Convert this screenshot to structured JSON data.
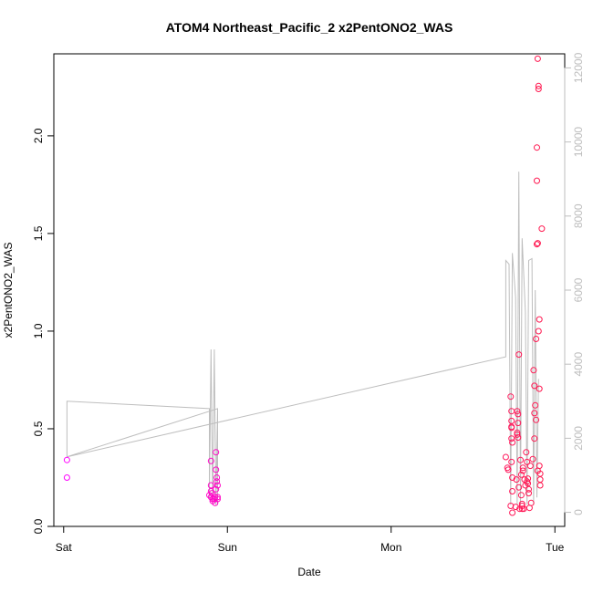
{
  "chart_data": {
    "type": "scatter",
    "title": "ATOM4 Northeast_Pacific_2 x2PentONO2_WAS",
    "xlabel": "Date",
    "ylabel": "x2PentONO2_WAS",
    "x_ticks": [
      {
        "label": "Sat",
        "value": 0
      },
      {
        "label": "Sun",
        "value": 1
      },
      {
        "label": "Mon",
        "value": 2
      },
      {
        "label": "Tue",
        "value": 3
      }
    ],
    "xlim": [
      -0.06,
      3.06
    ],
    "y_ticks": [
      0.0,
      0.5,
      1.0,
      1.5,
      2.0
    ],
    "y_tick_labels": [
      "0.0",
      "0.5",
      "1.0",
      "1.5",
      "2.0"
    ],
    "ylim": [
      0.0,
      2.42
    ],
    "y2_ticks": [
      0,
      2000,
      4000,
      6000,
      8000,
      10000,
      12000
    ],
    "y2lim": [
      -380,
      12380
    ],
    "grid": false,
    "colors": {
      "points_start": "#ff00ff",
      "points_end": "#ff1a4a",
      "altitude_line": "#bebebe"
    },
    "series": [
      {
        "points": [
          [
            0.02,
            0.34
          ],
          [
            0.02,
            0.25
          ],
          [
            0.9,
            0.335
          ],
          [
            0.9,
            0.21
          ],
          [
            0.89,
            0.16
          ],
          [
            0.9,
            0.15
          ],
          [
            0.91,
            0.14
          ],
          [
            0.905,
            0.17
          ],
          [
            0.91,
            0.13
          ],
          [
            0.9,
            0.18
          ],
          [
            0.92,
            0.14
          ],
          [
            0.925,
            0.15
          ],
          [
            0.93,
            0.38
          ],
          [
            0.93,
            0.29
          ],
          [
            0.935,
            0.25
          ],
          [
            0.935,
            0.23
          ],
          [
            0.94,
            0.21
          ],
          [
            0.93,
            0.19
          ],
          [
            0.925,
            0.12
          ],
          [
            0.94,
            0.15
          ],
          [
            0.94,
            0.14
          ],
          [
            2.7,
            0.355
          ],
          [
            2.71,
            0.3
          ],
          [
            2.715,
            0.29
          ],
          [
            2.73,
            0.665
          ],
          [
            2.735,
            0.59
          ],
          [
            2.735,
            0.54
          ],
          [
            2.735,
            0.51
          ],
          [
            2.735,
            0.505
          ],
          [
            2.735,
            0.45
          ],
          [
            2.74,
            0.43
          ],
          [
            2.735,
            0.33
          ],
          [
            2.74,
            0.25
          ],
          [
            2.74,
            0.18
          ],
          [
            2.73,
            0.105
          ],
          [
            2.74,
            0.07
          ],
          [
            2.76,
            0.1
          ],
          [
            2.765,
            0.24
          ],
          [
            2.77,
            0.59
          ],
          [
            2.775,
            0.575
          ],
          [
            2.775,
            0.53
          ],
          [
            2.77,
            0.48
          ],
          [
            2.77,
            0.47
          ],
          [
            2.775,
            0.455
          ],
          [
            2.78,
            0.88
          ],
          [
            2.78,
            0.2
          ],
          [
            2.785,
            0.09
          ],
          [
            2.79,
            0.34
          ],
          [
            2.795,
            0.265
          ],
          [
            2.795,
            0.16
          ],
          [
            2.8,
            0.115
          ],
          [
            2.8,
            0.09
          ],
          [
            2.8,
            0.105
          ],
          [
            2.805,
            0.3
          ],
          [
            2.805,
            0.285
          ],
          [
            2.81,
            0.09
          ],
          [
            2.815,
            0.24
          ],
          [
            2.82,
            0.21
          ],
          [
            2.825,
            0.38
          ],
          [
            2.83,
            0.33
          ],
          [
            2.83,
            0.23
          ],
          [
            2.835,
            0.245
          ],
          [
            2.835,
            0.22
          ],
          [
            2.84,
            0.19
          ],
          [
            2.84,
            0.17
          ],
          [
            2.845,
            0.095
          ],
          [
            2.85,
            0.31
          ],
          [
            2.855,
            0.12
          ],
          [
            2.865,
            0.345
          ],
          [
            2.87,
            0.8
          ],
          [
            2.875,
            0.72
          ],
          [
            2.875,
            0.58
          ],
          [
            2.875,
            0.45
          ],
          [
            2.88,
            0.62
          ],
          [
            2.885,
            0.96
          ],
          [
            2.885,
            0.545
          ],
          [
            2.89,
            1.94
          ],
          [
            2.89,
            1.445
          ],
          [
            2.89,
            1.77
          ],
          [
            2.895,
            1.45
          ],
          [
            2.895,
            0.285
          ],
          [
            2.9,
            1.0
          ],
          [
            2.905,
            1.06
          ],
          [
            2.905,
            0.705
          ],
          [
            2.905,
            0.31
          ],
          [
            2.91,
            0.27
          ],
          [
            2.91,
            0.24
          ],
          [
            2.91,
            0.21
          ],
          [
            2.92,
            1.525
          ],
          [
            2.9,
            2.255
          ],
          [
            2.9,
            2.24
          ],
          [
            2.895,
            2.395
          ]
        ]
      }
    ],
    "altitude": [
      [
        0.02,
        1500
      ],
      [
        0.02,
        3000
      ],
      [
        0.89,
        2800
      ],
      [
        0.89,
        400
      ],
      [
        0.9,
        4400
      ],
      [
        0.91,
        200
      ],
      [
        0.92,
        4400
      ],
      [
        0.93,
        200
      ],
      [
        0.94,
        2800
      ],
      [
        0.94,
        200
      ],
      [
        0.94,
        2800
      ],
      [
        0.02,
        1500
      ],
      [
        2.7,
        4200
      ],
      [
        2.7,
        6800
      ],
      [
        2.72,
        6700
      ],
      [
        2.73,
        200
      ],
      [
        2.74,
        7000
      ],
      [
        2.76,
        5800
      ],
      [
        2.77,
        200
      ],
      [
        2.78,
        9200
      ],
      [
        2.79,
        200
      ],
      [
        2.8,
        7400
      ],
      [
        2.82,
        5400
      ],
      [
        2.83,
        200
      ],
      [
        2.84,
        6800
      ],
      [
        2.86,
        6850
      ],
      [
        2.87,
        200
      ],
      [
        2.88,
        6000
      ],
      [
        2.89,
        400
      ],
      [
        2.9,
        3600
      ]
    ]
  }
}
